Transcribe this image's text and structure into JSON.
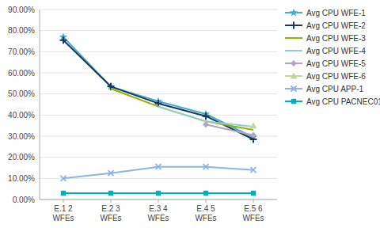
{
  "chart_data": {
    "type": "line",
    "categories": [
      "E.1 2\nWFEs",
      "E.2 3\nWFEs",
      "E.3 4\nWFEs",
      "E.4 5\nWFEs",
      "E.5 6\nWFEs"
    ],
    "series": [
      {
        "name": "Avg CPU WFE-1",
        "color": "#4BACC6",
        "marker": "star",
        "line_style": "solid",
        "values": [
          0.77,
          0.535,
          0.465,
          0.405,
          0.295
        ]
      },
      {
        "name": "Avg CPU WFE-2",
        "color": "#17375E",
        "marker": "plus",
        "line_style": "solid",
        "values": [
          0.755,
          0.535,
          0.455,
          0.395,
          0.285
        ]
      },
      {
        "name": "Avg CPU WFE-3",
        "color": "#8EB400",
        "marker": "none",
        "line_style": "solid",
        "values": [
          null,
          0.525,
          0.44,
          0.37,
          0.33
        ]
      },
      {
        "name": "Avg CPU WFE-4",
        "color": "#92CDDC",
        "marker": "none",
        "line_style": "solid",
        "values": [
          null,
          null,
          0.44,
          0.37,
          0.345
        ]
      },
      {
        "name": "Avg CPU WFE-5",
        "color": "#B3A2C7",
        "marker": "diamond",
        "line_style": "solid",
        "values": [
          null,
          null,
          null,
          0.355,
          0.305
        ]
      },
      {
        "name": "Avg CPU WFE-6",
        "color": "#C4D79B",
        "marker": "triangle",
        "line_style": "solid",
        "values": [
          null,
          null,
          null,
          null,
          0.35
        ]
      },
      {
        "name": "Avg CPU APP-1",
        "color": "#8DB4E2",
        "marker": "x",
        "line_style": "solid",
        "values": [
          0.1,
          0.125,
          0.155,
          0.155,
          0.14
        ]
      },
      {
        "name": "Avg CPU PACNEC01",
        "color": "#00B0B9",
        "marker": "square",
        "line_style": "solid",
        "values": [
          0.03,
          0.03,
          0.03,
          0.03,
          0.03
        ]
      }
    ],
    "ylim": [
      0.0,
      0.9
    ],
    "yticks": [
      {
        "value": 0.0,
        "label": "0.00%"
      },
      {
        "value": 0.1,
        "label": "10.00%"
      },
      {
        "value": 0.2,
        "label": "20.00%"
      },
      {
        "value": 0.3,
        "label": "30.00%"
      },
      {
        "value": 0.4,
        "label": "40.00%"
      },
      {
        "value": 0.5,
        "label": "50.00%"
      },
      {
        "value": 0.6,
        "label": "60.00%"
      },
      {
        "value": 0.7,
        "label": "70.00%"
      },
      {
        "value": 0.8,
        "label": "80.00%"
      },
      {
        "value": 0.9,
        "label": "90.00%"
      }
    ],
    "grid": true,
    "legend": "right"
  }
}
